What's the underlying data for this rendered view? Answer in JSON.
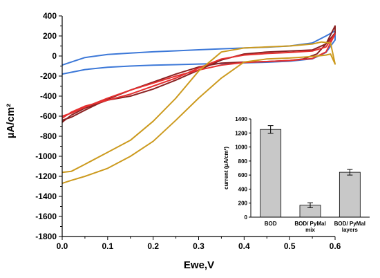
{
  "chart_data": [
    {
      "type": "line",
      "title": "",
      "xlabel": "Ewe,V",
      "ylabel": "µA/cm²",
      "xlim": [
        0.0,
        0.6
      ],
      "ylim": [
        -1800,
        400
      ],
      "x_ticks": [
        "0.0",
        "0.1",
        "0.2",
        "0.3",
        "0.4",
        "0.5",
        "0.6"
      ],
      "y_ticks": [
        "400",
        "200",
        "0",
        "-200",
        "-400",
        "-600",
        "-800",
        "-1000",
        "-1200",
        "-1400",
        "-1600",
        "-1800"
      ],
      "grid": false,
      "series": [
        {
          "color": "#3c78d8",
          "x": [
            0.0,
            0.05,
            0.1,
            0.15,
            0.2,
            0.25,
            0.3,
            0.35,
            0.4,
            0.45,
            0.5,
            0.55,
            0.58,
            0.6,
            0.6,
            0.58,
            0.55,
            0.5,
            0.45,
            0.4,
            0.35,
            0.3,
            0.25,
            0.2,
            0.15,
            0.1,
            0.05,
            0.0
          ],
          "y": [
            -180,
            -135,
            -112,
            -100,
            -92,
            -86,
            -80,
            -75,
            -68,
            -62,
            -52,
            -28,
            35,
            160,
            250,
            200,
            130,
            100,
            88,
            80,
            72,
            62,
            52,
            42,
            30,
            15,
            -15,
            -90
          ]
        },
        {
          "color": "#8b2222",
          "x": [
            0.0,
            0.02,
            0.05,
            0.1,
            0.15,
            0.2,
            0.25,
            0.3,
            0.35,
            0.4,
            0.45,
            0.5,
            0.53,
            0.56,
            0.58,
            0.6,
            0.6,
            0.58,
            0.55,
            0.5,
            0.45,
            0.4,
            0.35,
            0.3,
            0.25,
            0.2,
            0.15,
            0.1,
            0.05,
            0.02,
            0.0
          ],
          "y": [
            -640,
            -610,
            -540,
            -430,
            -340,
            -260,
            -180,
            -110,
            -70,
            -60,
            -55,
            -45,
            -30,
            20,
            120,
            300,
            230,
            120,
            60,
            50,
            40,
            20,
            -40,
            -140,
            -240,
            -330,
            -400,
            -440,
            -520,
            -590,
            -660
          ]
        },
        {
          "color": "#e53030",
          "x": [
            0.0,
            0.02,
            0.05,
            0.1,
            0.15,
            0.2,
            0.25,
            0.3,
            0.35,
            0.4,
            0.45,
            0.5,
            0.55,
            0.58,
            0.6,
            0.58,
            0.55,
            0.5,
            0.45,
            0.4,
            0.35,
            0.3,
            0.25,
            0.2,
            0.15,
            0.1,
            0.05,
            0.02,
            0.0
          ],
          "y": [
            -600,
            -570,
            -510,
            -420,
            -340,
            -270,
            -200,
            -140,
            -90,
            -65,
            -55,
            -45,
            -25,
            40,
            220,
            90,
            50,
            35,
            25,
            10,
            -30,
            -120,
            -220,
            -300,
            -380,
            -440,
            -500,
            -560,
            -620
          ]
        },
        {
          "color": "#cc9a1e",
          "x": [
            0.0,
            0.02,
            0.05,
            0.1,
            0.15,
            0.2,
            0.25,
            0.3,
            0.35,
            0.4,
            0.45,
            0.5,
            0.55,
            0.58,
            0.59,
            0.6,
            0.59,
            0.57,
            0.55,
            0.5,
            0.45,
            0.4,
            0.35,
            0.3,
            0.25,
            0.2,
            0.15,
            0.1,
            0.05,
            0.02,
            0.0
          ],
          "y": [
            -1270,
            -1240,
            -1200,
            -1120,
            -1000,
            -850,
            -640,
            -420,
            -220,
            -60,
            -30,
            -20,
            -5,
            10,
            20,
            -80,
            130,
            140,
            120,
            100,
            90,
            80,
            40,
            -150,
            -420,
            -650,
            -840,
            -960,
            -1080,
            -1150,
            -1160
          ]
        }
      ]
    },
    {
      "type": "bar",
      "title": "",
      "xlabel": "",
      "ylabel": "current (µA/cm²)",
      "categories": [
        "BOD",
        "BOD/ PyMal mix",
        "BOD/ PyMal layers"
      ],
      "category_lines": [
        [
          "BOD"
        ],
        [
          "BOD/ PyMal",
          "mix"
        ],
        [
          "BOD/ PyMal",
          "layers"
        ]
      ],
      "values": [
        1250,
        170,
        640
      ],
      "errors": [
        55,
        35,
        40
      ],
      "ylim": [
        0,
        1400
      ],
      "y_ticks": [
        "0",
        "200",
        "400",
        "600",
        "800",
        "1000",
        "1200",
        "1400"
      ],
      "bar_color": "#c8c8c8",
      "grid": false
    }
  ]
}
